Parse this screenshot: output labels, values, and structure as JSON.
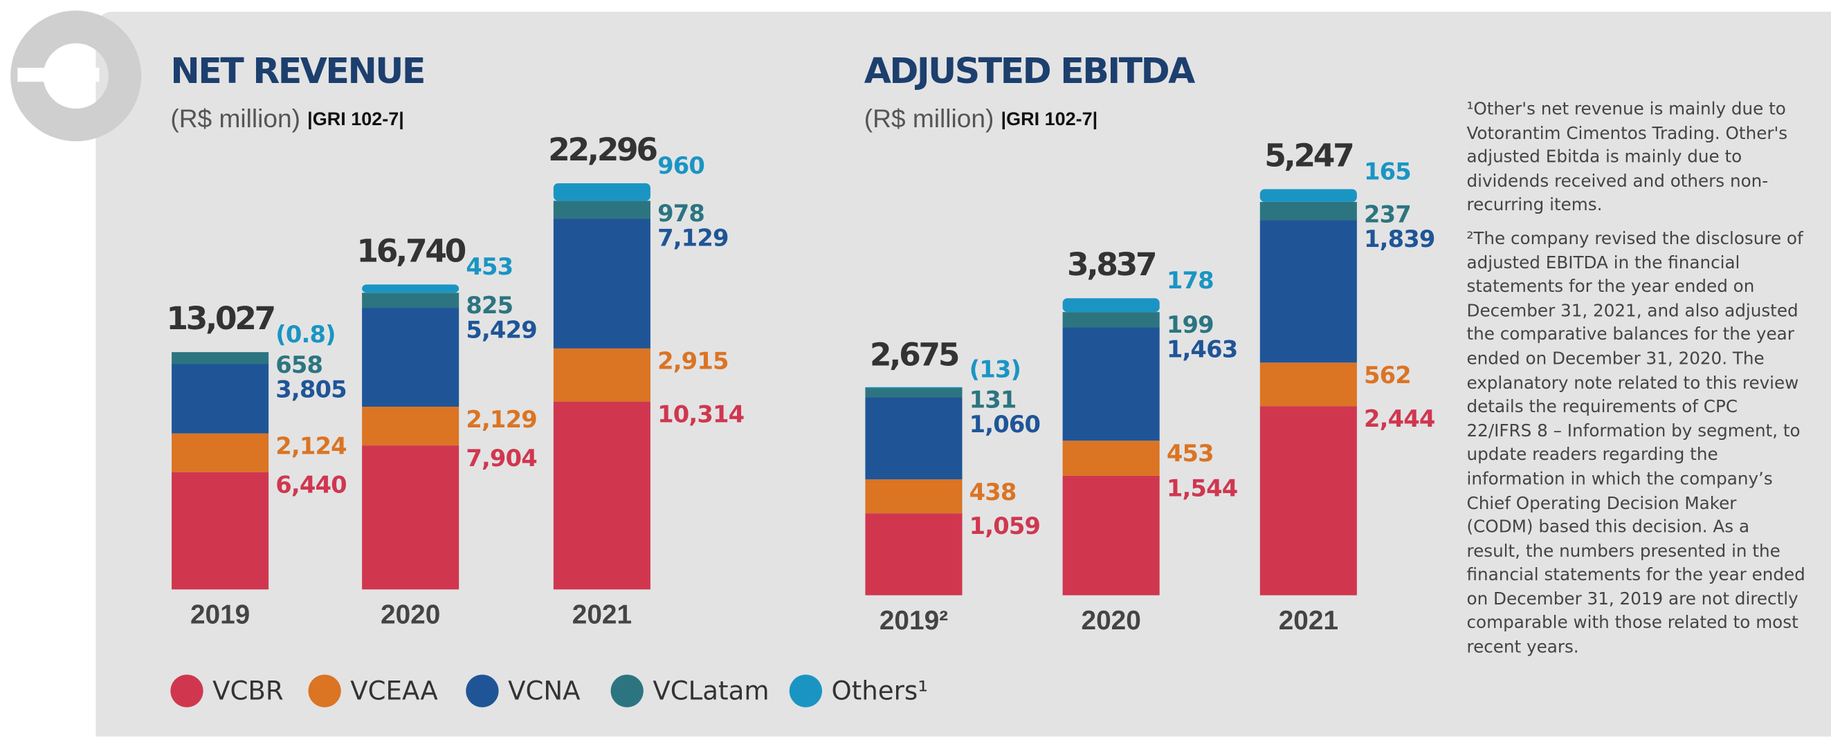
{
  "chart_data": [
    {
      "type": "bar",
      "stacked": true,
      "title": "NET REVENUE",
      "subtitle": "(R$ million)",
      "reference": "|GRI 102-7|",
      "categories": [
        "2019",
        "2020",
        "2021"
      ],
      "totals": [
        13027,
        16740,
        22296
      ],
      "total_labels": [
        "13,027",
        "16,740",
        "22,296"
      ],
      "series": [
        {
          "name": "VCBR",
          "color": "#d0374f",
          "values": [
            6440,
            7904,
            10314
          ],
          "value_labels": [
            "6,440",
            "7,904",
            "10,314"
          ]
        },
        {
          "name": "VCEAA",
          "color": "#db7423",
          "values": [
            2124,
            2129,
            2915
          ],
          "value_labels": [
            "2,124",
            "2,129",
            "2,915"
          ]
        },
        {
          "name": "VCNA",
          "color": "#1f5597",
          "values": [
            3805,
            5429,
            7129
          ],
          "value_labels": [
            "3,805",
            "5,429",
            "7,129"
          ]
        },
        {
          "name": "VCLatam",
          "color": "#2c7580",
          "values": [
            658,
            825,
            978
          ],
          "value_labels": [
            "658",
            "825",
            "978"
          ]
        },
        {
          "name": "Others¹",
          "color": "#1a95c3",
          "values": [
            -0.8,
            453,
            960
          ],
          "value_labels": [
            "(0.8)",
            "453",
            "960"
          ]
        }
      ]
    },
    {
      "type": "bar",
      "stacked": true,
      "title": "ADJUSTED EBITDA",
      "subtitle": "(R$ million)",
      "reference": "|GRI 102-7|",
      "categories": [
        "2019²",
        "2020",
        "2021"
      ],
      "totals": [
        2675,
        3837,
        5247
      ],
      "total_labels": [
        "2,675",
        "3,837",
        "5,247"
      ],
      "series": [
        {
          "name": "VCBR",
          "color": "#d0374f",
          "values": [
            1059,
            1544,
            2444
          ],
          "value_labels": [
            "1,059",
            "1,544",
            "2,444"
          ]
        },
        {
          "name": "VCEAA",
          "color": "#db7423",
          "values": [
            438,
            453,
            562
          ]
        },
        {
          "name": "VCNA",
          "color": "#1f5597",
          "values": [
            1060,
            1463,
            1839
          ],
          "value_labels": [
            "1,060",
            "1,463",
            "1,839"
          ]
        },
        {
          "name": "VCLatam",
          "color": "#2c7580",
          "values": [
            131,
            199,
            237
          ]
        },
        {
          "name": "Others¹",
          "color": "#1a95c3",
          "values": [
            -13,
            178,
            165
          ],
          "value_labels": [
            "(13)",
            "178",
            "165"
          ]
        }
      ]
    }
  ],
  "notes": [
    "¹Other's net revenue is mainly due to Votorantim Cimentos Trading. Other's adjusted Ebitda is mainly due to dividends received and others non-recurring items.",
    "²The company revised the disclosure of adjusted EBITDA in the financial statements for the year ended on December 31, 2021, and also adjusted the comparative balances for the year ended on December 31, 2020. The explanatory note related to this review details the requirements of CPC 22/IFRS 8 – Information by segment, to update readers regarding the information in which the company’s Chief Operating Decision Maker (CODM) based this decision. As a result, the numbers presented in the financial statements for the year ended on December 31, 2019 are not directly comparable with those related to most recent years."
  ]
}
